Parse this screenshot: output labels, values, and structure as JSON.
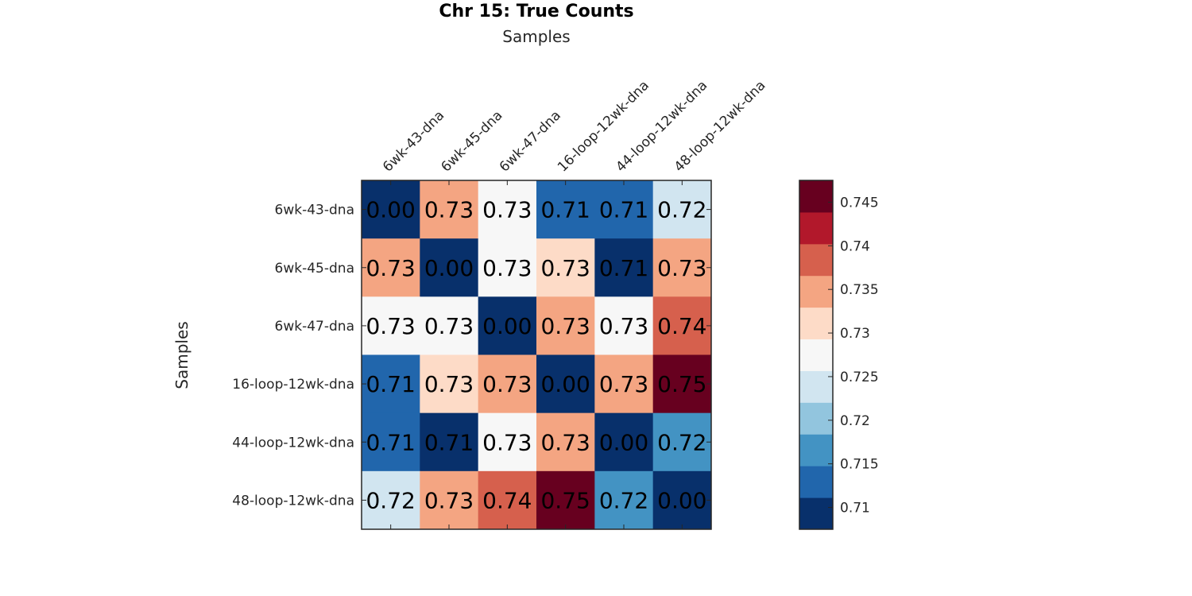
{
  "chart_data": {
    "type": "heatmap",
    "title": "Chr 15: True Counts",
    "xlabel": "Samples",
    "ylabel": "Samples",
    "x_categories": [
      "6wk-43-dna",
      "6wk-45-dna",
      "6wk-47-dna",
      "16-loop-12wk-dna",
      "44-loop-12wk-dna",
      "48-loop-12wk-dna"
    ],
    "y_categories": [
      "6wk-43-dna",
      "6wk-45-dna",
      "6wk-47-dna",
      "16-loop-12wk-dna",
      "44-loop-12wk-dna",
      "48-loop-12wk-dna"
    ],
    "values": [
      [
        0.0,
        0.73,
        0.73,
        0.71,
        0.71,
        0.72
      ],
      [
        0.73,
        0.0,
        0.73,
        0.73,
        0.71,
        0.73
      ],
      [
        0.73,
        0.73,
        0.0,
        0.73,
        0.73,
        0.74
      ],
      [
        0.71,
        0.73,
        0.73,
        0.0,
        0.73,
        0.75
      ],
      [
        0.71,
        0.71,
        0.73,
        0.73,
        0.0,
        0.72
      ],
      [
        0.72,
        0.73,
        0.74,
        0.75,
        0.72,
        0.0
      ]
    ],
    "cell_labels": [
      [
        "0.00",
        "0.73",
        "0.73",
        "0.71",
        "0.71",
        "0.72"
      ],
      [
        "0.73",
        "0.00",
        "0.73",
        "0.73",
        "0.71",
        "0.73"
      ],
      [
        "0.73",
        "0.73",
        "0.00",
        "0.73",
        "0.73",
        "0.74"
      ],
      [
        "0.71",
        "0.73",
        "0.73",
        "0.00",
        "0.73",
        "0.75"
      ],
      [
        "0.71",
        "0.71",
        "0.73",
        "0.73",
        "0.00",
        "0.72"
      ],
      [
        "0.72",
        "0.73",
        "0.74",
        "0.75",
        "0.72",
        "0.00"
      ]
    ],
    "colorbar": {
      "range": [
        0.7075,
        0.7475
      ],
      "ticks": [
        0.71,
        0.715,
        0.72,
        0.725,
        0.73,
        0.735,
        0.74,
        0.745
      ],
      "tick_labels": [
        "0.71",
        "0.715",
        "0.72",
        "0.725",
        "0.73",
        "0.735",
        "0.74",
        "0.745"
      ],
      "colors": [
        "#08306b",
        "#2166ac",
        "#4393c3",
        "#92c5de",
        "#d1e5f0",
        "#f7f7f7",
        "#fddbc7",
        "#f4a582",
        "#d6604d",
        "#b2182b",
        "#67001f"
      ]
    },
    "cell_colors": [
      [
        "#08306b",
        "#f4a582",
        "#f7f7f7",
        "#2166ac",
        "#2166ac",
        "#d1e5f0"
      ],
      [
        "#f4a582",
        "#08306b",
        "#f7f7f7",
        "#fddbc7",
        "#08306b",
        "#f4a582"
      ],
      [
        "#f7f7f7",
        "#f7f7f7",
        "#08306b",
        "#f4a582",
        "#f7f7f7",
        "#d6604d"
      ],
      [
        "#2166ac",
        "#fddbc7",
        "#f4a582",
        "#08306b",
        "#f4a582",
        "#67001f"
      ],
      [
        "#2166ac",
        "#08306b",
        "#f7f7f7",
        "#f4a582",
        "#08306b",
        "#4393c3"
      ],
      [
        "#d1e5f0",
        "#f4a582",
        "#d6604d",
        "#67001f",
        "#4393c3",
        "#08306b"
      ]
    ]
  }
}
